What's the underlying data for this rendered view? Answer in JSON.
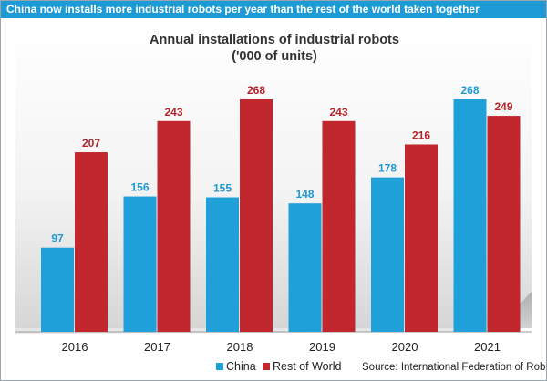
{
  "banner": {
    "text": "China now installs more industrial robots per year than the rest of the world taken together"
  },
  "source": "Source: International Federation of Robotics",
  "colors": {
    "banner": "#1e9ad6",
    "china": "#1fa0d8",
    "rest": "#c1272d",
    "china_label": "#1e9ad6",
    "rest_label": "#b8232a"
  },
  "chart_data": {
    "type": "bar",
    "title": "Annual installations of industrial robots",
    "subtitle": "('000 of units)",
    "xlabel": "",
    "ylabel": "",
    "categories": [
      "2016",
      "2017",
      "2018",
      "2019",
      "2020",
      "2021"
    ],
    "series": [
      {
        "name": "China",
        "values": [
          97,
          156,
          155,
          148,
          178,
          268
        ]
      },
      {
        "name": "Rest of World",
        "values": [
          207,
          243,
          268,
          243,
          216,
          249
        ]
      }
    ],
    "ylim": [
      0,
      268
    ],
    "grid": false,
    "legend_position": "bottom-left"
  }
}
